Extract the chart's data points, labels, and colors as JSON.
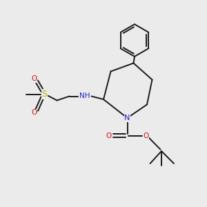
{
  "bg_color": "#ebebeb",
  "bond_color": "#1a1a1a",
  "N_color": "#2020cc",
  "O_color": "#cc1010",
  "S_color": "#b8b800",
  "lw": 1.4,
  "fs": 7.5,
  "figsize": [
    3.0,
    3.0
  ],
  "dpi": 100,
  "xlim": [
    0,
    10
  ],
  "ylim": [
    0,
    10
  ]
}
